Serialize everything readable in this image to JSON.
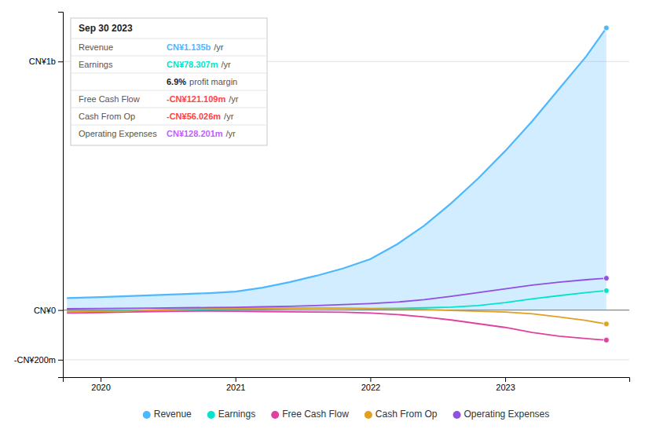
{
  "chart_data": {
    "type": "line",
    "x": [
      2019.75,
      2020.0,
      2020.2,
      2020.4,
      2020.6,
      2020.8,
      2021.0,
      2021.2,
      2021.4,
      2021.6,
      2021.8,
      2022.0,
      2022.2,
      2022.4,
      2022.6,
      2022.8,
      2023.0,
      2023.2,
      2023.4,
      2023.6,
      2023.75
    ],
    "xlim": [
      2019.72,
      2023.92
    ],
    "xticks": [
      2020,
      2021,
      2022,
      2023
    ],
    "ylim": [
      -270,
      1200
    ],
    "yticks": [
      {
        "value": -200,
        "label": "-CN¥200m"
      },
      {
        "value": 0,
        "label": "CN¥0"
      },
      {
        "value": 1000,
        "label": "CN¥1b"
      }
    ],
    "grid": true,
    "legend": "bottom",
    "series": [
      {
        "name": "Revenue",
        "type": "area",
        "color": "#4db8ff",
        "values": [
          48,
          52,
          56,
          60,
          64,
          68,
          74,
          90,
          112,
          138,
          168,
          205,
          265,
          340,
          430,
          530,
          640,
          760,
          890,
          1020,
          1135
        ]
      },
      {
        "name": "Earnings",
        "color": "#00e5cc",
        "values": [
          -5,
          -4,
          -2,
          0,
          2,
          3,
          4,
          5,
          6,
          7,
          7,
          6,
          7,
          9,
          12,
          18,
          30,
          45,
          58,
          70,
          78
        ]
      },
      {
        "name": "Free Cash Flow",
        "color": "#e040a0",
        "values": [
          -12,
          -10,
          -8,
          -6,
          -5,
          -4,
          -5,
          -6,
          -7,
          -8,
          -9,
          -12,
          -18,
          -28,
          -40,
          -55,
          -70,
          -90,
          -105,
          -115,
          -121
        ]
      },
      {
        "name": "Cash From Op",
        "color": "#e0a020",
        "values": [
          -8,
          -5,
          -3,
          0,
          3,
          5,
          6,
          7,
          8,
          8,
          7,
          5,
          4,
          2,
          -2,
          -5,
          -8,
          -15,
          -28,
          -42,
          -56
        ]
      },
      {
        "name": "Operating Expenses",
        "color": "#9050e0",
        "values": [
          5,
          6,
          7,
          8,
          9,
          10,
          11,
          13,
          15,
          18,
          22,
          26,
          32,
          42,
          55,
          70,
          85,
          100,
          112,
          122,
          128
        ]
      }
    ],
    "annotations": {
      "title": "Sep 30 2023",
      "rows": [
        {
          "label": "Revenue",
          "value": "CN¥1.135b",
          "color": "#4db8ff",
          "suffix": "/yr"
        },
        {
          "label": "Earnings",
          "value": "CN¥78.307m",
          "color": "#00e5cc",
          "suffix": "/yr"
        },
        {
          "value": "6.9%",
          "suffix": "profit margin"
        },
        {
          "label": "Free Cash Flow",
          "value": "-CN¥121.109m",
          "color": "#ff4444",
          "suffix": "/yr"
        },
        {
          "label": "Cash From Op",
          "value": "-CN¥56.026m",
          "color": "#ff4444",
          "suffix": "/yr"
        },
        {
          "label": "Operating Expenses",
          "value": "CN¥128.201m",
          "color": "#bf5fff",
          "suffix": "/yr"
        }
      ]
    }
  }
}
